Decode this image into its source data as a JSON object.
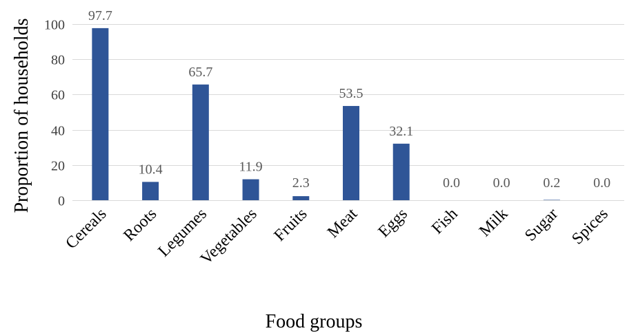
{
  "chart_data": {
    "type": "bar",
    "title": "",
    "xlabel": "Food groups",
    "ylabel": "Proportion of households",
    "categories": [
      "Cereals",
      "Roots",
      "Legumes",
      "Vegetables",
      "Fruits",
      "Meat",
      "Eggs",
      "Fish",
      "Milk",
      "Sugar",
      "Spices"
    ],
    "series": [
      {
        "values": [
          97.7,
          10.4,
          65.7,
          11.9,
          2.3,
          53.5,
          32.1,
          0.0,
          0.0,
          0.2,
          0.0
        ],
        "color": "#2f5597"
      }
    ],
    "data_labels": [
      "97.7",
      "10.4",
      "65.7",
      "11.9",
      "2.3",
      "53.5",
      "32.1",
      "0.0",
      "0.0",
      "0.2",
      "0.0"
    ],
    "yticks": [
      0,
      20,
      40,
      60,
      80,
      100
    ],
    "ylim": [
      0,
      100
    ],
    "grid": true,
    "legend": "none"
  }
}
